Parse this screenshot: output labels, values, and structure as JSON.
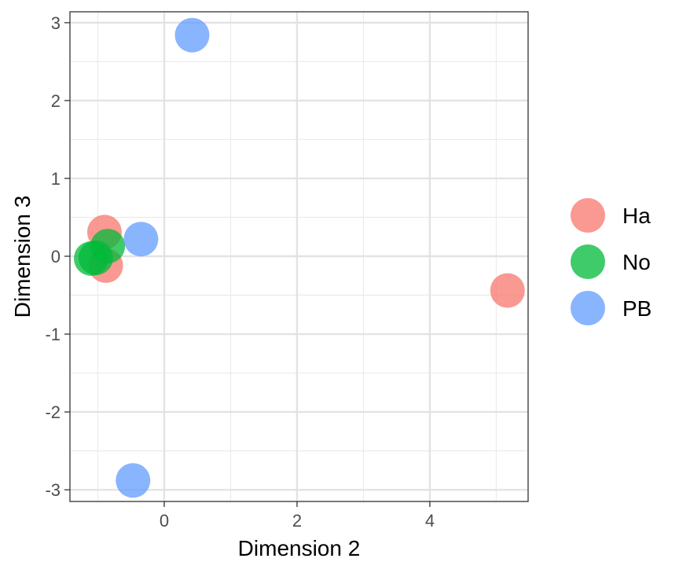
{
  "chart_data": {
    "type": "scatter",
    "xlabel": "Dimension 2",
    "ylabel": "Dimension 3",
    "xlim": [
      -1.42,
      5.48
    ],
    "ylim": [
      -3.15,
      3.14
    ],
    "x_ticks": [
      0,
      2,
      4
    ],
    "y_ticks": [
      -3,
      -2,
      -1,
      0,
      1,
      2,
      3
    ],
    "x_tick_labels": [
      "0",
      "2",
      "4"
    ],
    "y_tick_labels": [
      "-3",
      "-2",
      "-1",
      "0",
      "1",
      "2",
      "3"
    ],
    "grid": true,
    "legend_position": "right",
    "series": [
      {
        "name": "Ha",
        "color": "#F8766D",
        "points": [
          {
            "x": -0.9,
            "y": 0.31
          },
          {
            "x": -0.88,
            "y": -0.12
          },
          {
            "x": 5.17,
            "y": -0.44
          }
        ]
      },
      {
        "name": "No",
        "color": "#00BA38",
        "points": [
          {
            "x": -1.1,
            "y": -0.03
          },
          {
            "x": -1.03,
            "y": -0.02
          },
          {
            "x": -0.85,
            "y": 0.13
          }
        ]
      },
      {
        "name": "PB",
        "color": "#619CFF",
        "points": [
          {
            "x": 0.42,
            "y": 2.84
          },
          {
            "x": -0.35,
            "y": 0.22
          },
          {
            "x": -0.47,
            "y": -2.88
          }
        ]
      }
    ]
  }
}
